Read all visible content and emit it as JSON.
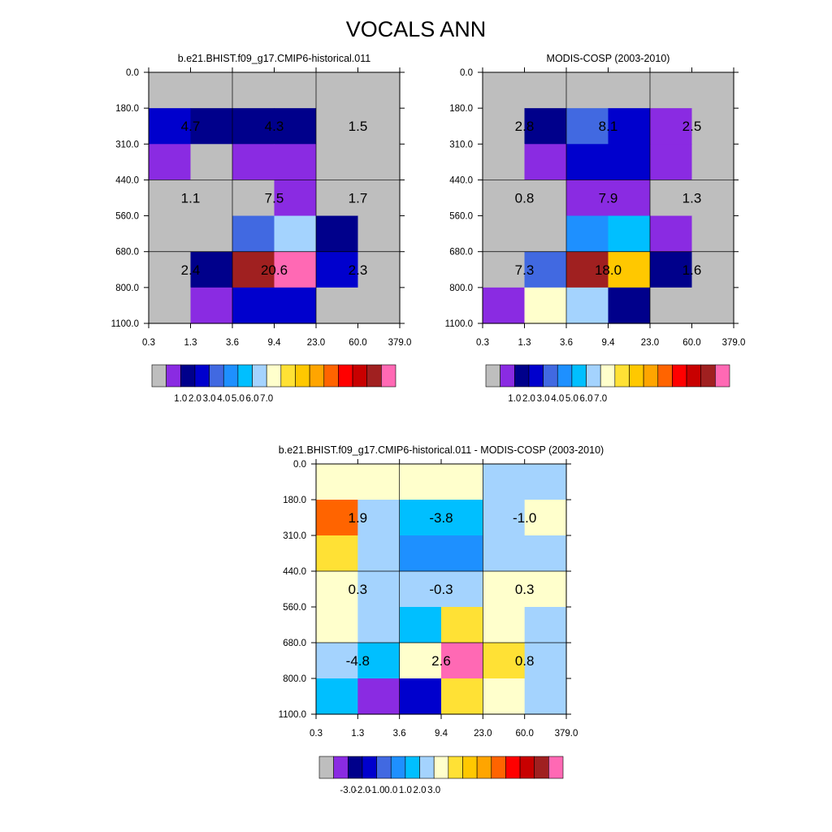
{
  "title": "VOCALS ANN",
  "colorbars": {
    "abs": {
      "colors": [
        "#bebebe",
        "#8a2be2",
        "#00008b",
        "#0000cd",
        "#4169e1",
        "#1e90ff",
        "#00bfff",
        "#a4d3fe",
        "#ffffcc",
        "#ffe135",
        "#ffc800",
        "#ffa500",
        "#ff6400",
        "#ff0000",
        "#c80000",
        "#a02020",
        "#ff69b4"
      ],
      "labels": [
        "1.0",
        "2.0",
        "3.0",
        "4.0",
        "5.0",
        "6.0",
        "7.0"
      ]
    },
    "diff": {
      "colors": [
        "#bebebe",
        "#8a2be2",
        "#00008b",
        "#0000cd",
        "#4169e1",
        "#1e90ff",
        "#00bfff",
        "#a4d3fe",
        "#ffffcc",
        "#ffe135",
        "#ffc800",
        "#ffa500",
        "#ff6400",
        "#ff0000",
        "#c80000",
        "#a02020",
        "#ff69b4"
      ],
      "labels": [
        "-3.0",
        "-2.0",
        "-1.0",
        "0.0",
        "1.0",
        "2.0",
        "3.0"
      ]
    }
  },
  "chart_data": [
    {
      "type": "heatmap",
      "title": "b.e21.BHIST.f09_g17.CMIP6-historical.011",
      "x_ticks": [
        "0.3",
        "1.3",
        "3.6",
        "9.4",
        "23.0",
        "60.0",
        "379.0"
      ],
      "y_ticks": [
        "0.0",
        "180.0",
        "310.0",
        "440.0",
        "560.0",
        "680.0",
        "800.0",
        "1100.0"
      ],
      "colorbar": "abs",
      "color_index": [
        [
          0,
          0,
          0,
          0,
          0,
          0
        ],
        [
          3,
          2,
          2,
          2,
          0,
          0
        ],
        [
          1,
          0,
          1,
          1,
          0,
          0
        ],
        [
          0,
          0,
          0,
          1,
          0,
          0
        ],
        [
          0,
          0,
          4,
          7,
          2,
          0
        ],
        [
          0,
          2,
          15,
          16,
          3,
          0
        ],
        [
          0,
          1,
          3,
          3,
          0,
          0
        ]
      ],
      "block_labels": [
        [
          "4.7",
          "4.3",
          "1.5"
        ],
        [
          "1.1",
          "7.5",
          "1.7"
        ],
        [
          "2.4",
          "20.6",
          "2.3"
        ]
      ]
    },
    {
      "type": "heatmap",
      "title": "MODIS-COSP (2003-2010)",
      "x_ticks": [
        "0.3",
        "1.3",
        "3.6",
        "9.4",
        "23.0",
        "60.0",
        "379.0"
      ],
      "y_ticks": [
        "0.0",
        "180.0",
        "310.0",
        "440.0",
        "560.0",
        "680.0",
        "800.0",
        "1100.0"
      ],
      "colorbar": "abs",
      "color_index": [
        [
          0,
          0,
          0,
          0,
          0,
          0
        ],
        [
          0,
          2,
          4,
          3,
          1,
          0
        ],
        [
          0,
          1,
          3,
          3,
          1,
          0
        ],
        [
          0,
          0,
          1,
          1,
          0,
          0
        ],
        [
          0,
          0,
          5,
          6,
          1,
          0
        ],
        [
          0,
          4,
          15,
          10,
          2,
          0
        ],
        [
          1,
          8,
          7,
          2,
          0,
          0
        ]
      ],
      "block_labels": [
        [
          "2.8",
          "8.1",
          "2.5"
        ],
        [
          "0.8",
          "7.9",
          "1.3"
        ],
        [
          "7.3",
          "18.0",
          "1.6"
        ]
      ]
    },
    {
      "type": "heatmap",
      "title": "b.e21.BHIST.f09_g17.CMIP6-historical.011 - MODIS-COSP (2003-2010)",
      "x_ticks": [
        "0.3",
        "1.3",
        "3.6",
        "9.4",
        "23.0",
        "60.0",
        "379.0"
      ],
      "y_ticks": [
        "0.0",
        "180.0",
        "310.0",
        "440.0",
        "560.0",
        "680.0",
        "800.0",
        "1100.0"
      ],
      "colorbar": "diff",
      "color_index": [
        [
          8,
          8,
          8,
          8,
          7,
          7
        ],
        [
          12,
          7,
          6,
          6,
          7,
          8
        ],
        [
          9,
          7,
          5,
          5,
          7,
          7
        ],
        [
          8,
          7,
          7,
          7,
          8,
          8
        ],
        [
          8,
          7,
          6,
          9,
          8,
          7
        ],
        [
          7,
          6,
          8,
          16,
          9,
          7
        ],
        [
          6,
          1,
          3,
          9,
          8,
          7
        ]
      ],
      "block_labels": [
        [
          "1.9",
          "-3.8",
          "-1.0"
        ],
        [
          "0.3",
          "-0.3",
          "0.3"
        ],
        [
          "-4.8",
          "2.6",
          "0.8"
        ]
      ]
    }
  ]
}
